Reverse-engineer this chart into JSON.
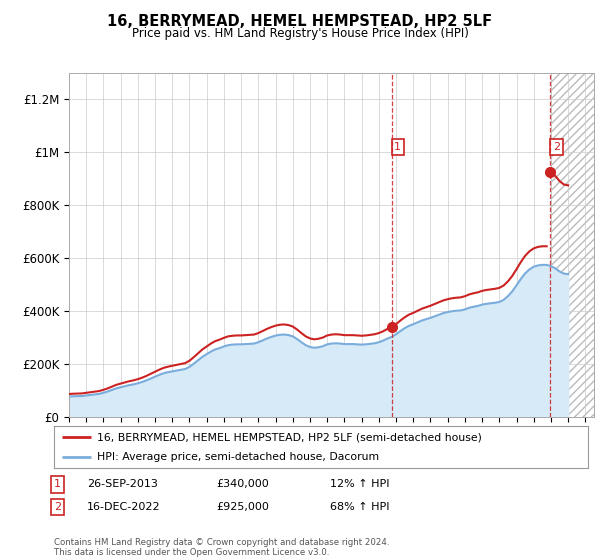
{
  "title": "16, BERRYMEAD, HEMEL HEMPSTEAD, HP2 5LF",
  "subtitle": "Price paid vs. HM Land Registry's House Price Index (HPI)",
  "ylim": [
    0,
    1300000
  ],
  "yticks": [
    0,
    200000,
    400000,
    600000,
    800000,
    1000000,
    1200000
  ],
  "ytick_labels": [
    "£0",
    "£200K",
    "£400K",
    "£600K",
    "£800K",
    "£1M",
    "£1.2M"
  ],
  "hpi_color": "#7aaddc",
  "hpi_fill_color": "#d6eaf8",
  "sale_color": "#cc2222",
  "grid_color": "#cccccc",
  "background_color": "#ffffff",
  "legend_label_sale": "16, BERRYMEAD, HEMEL HEMPSTEAD, HP2 5LF (semi-detached house)",
  "legend_label_hpi": "HPI: Average price, semi-detached house, Dacorum",
  "sale1_date": "26-SEP-2013",
  "sale1_price": 340000,
  "sale1_pct": "12% ↑ HPI",
  "sale2_date": "16-DEC-2022",
  "sale2_price": 925000,
  "sale2_pct": "68% ↑ HPI",
  "footnote": "Contains HM Land Registry data © Crown copyright and database right 2024.\nThis data is licensed under the Open Government Licence v3.0.",
  "hpi_years": [
    1995.0,
    1995.25,
    1995.5,
    1995.75,
    1996.0,
    1996.25,
    1996.5,
    1996.75,
    1997.0,
    1997.25,
    1997.5,
    1997.75,
    1998.0,
    1998.25,
    1998.5,
    1998.75,
    1999.0,
    1999.25,
    1999.5,
    1999.75,
    2000.0,
    2000.25,
    2000.5,
    2000.75,
    2001.0,
    2001.25,
    2001.5,
    2001.75,
    2002.0,
    2002.25,
    2002.5,
    2002.75,
    2003.0,
    2003.25,
    2003.5,
    2003.75,
    2004.0,
    2004.25,
    2004.5,
    2004.75,
    2005.0,
    2005.25,
    2005.5,
    2005.75,
    2006.0,
    2006.25,
    2006.5,
    2006.75,
    2007.0,
    2007.25,
    2007.5,
    2007.75,
    2008.0,
    2008.25,
    2008.5,
    2008.75,
    2009.0,
    2009.25,
    2009.5,
    2009.75,
    2010.0,
    2010.25,
    2010.5,
    2010.75,
    2011.0,
    2011.25,
    2011.5,
    2011.75,
    2012.0,
    2012.25,
    2012.5,
    2012.75,
    2013.0,
    2013.25,
    2013.5,
    2013.75,
    2014.0,
    2014.25,
    2014.5,
    2014.75,
    2015.0,
    2015.25,
    2015.5,
    2015.75,
    2016.0,
    2016.25,
    2016.5,
    2016.75,
    2017.0,
    2017.25,
    2017.5,
    2017.75,
    2018.0,
    2018.25,
    2018.5,
    2018.75,
    2019.0,
    2019.25,
    2019.5,
    2019.75,
    2020.0,
    2020.25,
    2020.5,
    2020.75,
    2021.0,
    2021.25,
    2021.5,
    2021.75,
    2022.0,
    2022.25,
    2022.5,
    2022.75,
    2023.0,
    2023.25,
    2023.5,
    2023.75,
    2024.0
  ],
  "hpi_values": [
    78000,
    79000,
    79500,
    80000,
    82000,
    84000,
    86000,
    88000,
    92000,
    97000,
    103000,
    109000,
    113000,
    117000,
    121000,
    124000,
    128000,
    133000,
    139000,
    146000,
    153000,
    160000,
    166000,
    170000,
    173000,
    176000,
    179000,
    182000,
    190000,
    202000,
    215000,
    228000,
    238000,
    248000,
    256000,
    261000,
    267000,
    272000,
    274000,
    275000,
    275000,
    276000,
    277000,
    278000,
    283000,
    290000,
    297000,
    303000,
    308000,
    311000,
    312000,
    310000,
    305000,
    295000,
    283000,
    272000,
    265000,
    262000,
    264000,
    268000,
    275000,
    278000,
    279000,
    278000,
    276000,
    276000,
    276000,
    275000,
    274000,
    275000,
    277000,
    279000,
    283000,
    289000,
    297000,
    303000,
    313000,
    325000,
    336000,
    345000,
    351000,
    358000,
    365000,
    370000,
    375000,
    381000,
    387000,
    393000,
    397000,
    400000,
    402000,
    403000,
    407000,
    413000,
    417000,
    420000,
    425000,
    428000,
    430000,
    432000,
    435000,
    443000,
    457000,
    475000,
    498000,
    522000,
    543000,
    558000,
    568000,
    573000,
    575000,
    575000,
    570000,
    562000,
    550000,
    542000,
    540000
  ],
  "sale_years": [
    2013.75,
    2022.96
  ],
  "sale_values": [
    340000,
    925000
  ],
  "xmin": 1995,
  "xmax": 2025,
  "hatched_xstart": 2023.0,
  "hatched_xend": 2025.5
}
